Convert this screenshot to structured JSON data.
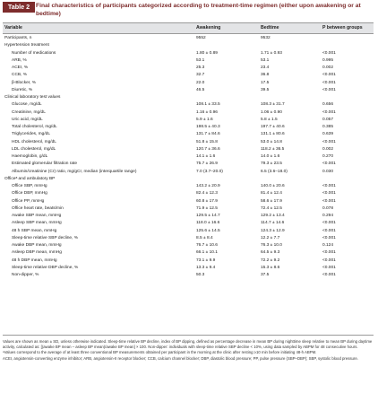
{
  "title": {
    "tag": "Table 2",
    "text": "Final characteristics of participants categorized according to treatment-time regimen (either upon awakening or at bedtime)"
  },
  "header": {
    "variable": "Variable",
    "awakening": "Awakening",
    "bedtime": "Bedtime",
    "p": "P between groups"
  },
  "rows": [
    {
      "label": "Participants, n",
      "a": "9552",
      "b": "9532",
      "p": "",
      "type": "top"
    },
    {
      "label": "Hypertension treatment",
      "a": "",
      "b": "",
      "p": "",
      "type": "section"
    },
    {
      "label": "Number of medications",
      "a": "1.80 ± 0.89",
      "b": "1.71 ± 0.93",
      "p": "<0.001",
      "type": "indent"
    },
    {
      "label": "ARB, %",
      "a": "53.1",
      "b": "53.1",
      "p": "0.995",
      "type": "indent"
    },
    {
      "label": "ACEI, %",
      "a": "25.3",
      "b": "23.4",
      "p": "0.002",
      "type": "indent"
    },
    {
      "label": "CCB, %",
      "a": "32.7",
      "b": "36.8",
      "p": "<0.001",
      "type": "indent"
    },
    {
      "label": "β-Blocker, %",
      "a": "22.0",
      "b": "17.5",
      "p": "<0.001",
      "type": "indent"
    },
    {
      "label": "Diuretic, %",
      "a": "46.5",
      "b": "39.5",
      "p": "<0.001",
      "type": "indent"
    },
    {
      "label": "Clinical laboratory test values",
      "a": "",
      "b": "",
      "p": "",
      "type": "section"
    },
    {
      "label": "Glucose, mg/dL",
      "a": "108.1 ± 33.5",
      "b": "108.3 ± 31.7",
      "p": "0.656",
      "type": "indent"
    },
    {
      "label": "Creatinine, mg/dL",
      "a": "1.16 ± 0.96",
      "b": "1.06 ± 0.90",
      "p": "<0.001",
      "type": "indent"
    },
    {
      "label": "Uric acid, mg/dL",
      "a": "5.9 ± 1.6",
      "b": "5.8 ± 1.5",
      "p": "0.057",
      "type": "indent"
    },
    {
      "label": "Total cholesterol, mg/dL",
      "a": "198.5 ± 40.3",
      "b": "197.7 ± 40.6",
      "p": "0.385",
      "type": "indent"
    },
    {
      "label": "Triglycerides, mg/dL",
      "a": "131.7 ± 84.6",
      "b": "131.1 ± 80.6",
      "p": "0.639",
      "type": "indent"
    },
    {
      "label": "HDL cholesterol, mg/dL",
      "a": "51.8 ± 15.8",
      "b": "53.0 ± 14.8",
      "p": "<0.001",
      "type": "indent"
    },
    {
      "label": "LDL cholesterol, mg/dL",
      "a": "120.7 ± 36.6",
      "b": "118.2 ± 36.5",
      "p": "0.002",
      "type": "indent"
    },
    {
      "label": "Haemoglobin, g/dL",
      "a": "14.1 ± 1.6",
      "b": "14.0 ± 1.6",
      "p": "0.270",
      "type": "indent"
    },
    {
      "label": "Estimated glomerular filtration rate",
      "a": "75.7 ± 26.9",
      "b": "79.3 ± 23.5",
      "p": "<0.001",
      "type": "indent"
    },
    {
      "label": "Albumin/creatinine (Cr) ratio, mg/gCr, median (interquartile range)",
      "a": "7.0 (3.7–20.0)",
      "b": "6.5 (3.6–18.0)",
      "p": "0.030",
      "type": "indent"
    },
    {
      "label": "Officeᵃ and ambulatory BP",
      "a": "",
      "b": "",
      "p": "",
      "type": "section"
    },
    {
      "label": "Office SBP, mmHg",
      "a": "143.2 ± 20.9",
      "b": "140.0 ± 20.6",
      "p": "<0.001",
      "type": "indent"
    },
    {
      "label": "Office DBP, mmHg",
      "a": "82.4 ± 12.3",
      "b": "81.4 ± 12.4",
      "p": "<0.001",
      "type": "indent"
    },
    {
      "label": "Office PP, mmHg",
      "a": "60.8 ± 17.9",
      "b": "58.6 ± 17.9",
      "p": "<0.001",
      "type": "indent"
    },
    {
      "label": "Office heart rate, beats/min",
      "a": "71.9 ± 12.5",
      "b": "72.4 ± 12.5",
      "p": "0.078",
      "type": "indent"
    },
    {
      "label": "Awake SBP mean, mmHg",
      "a": "129.5 ± 14.7",
      "b": "129.2 ± 13.4",
      "p": "0.294",
      "type": "indent"
    },
    {
      "label": "Asleep SBP mean, mmHg",
      "a": "118.0 ± 16.6",
      "b": "114.7 ± 14.6",
      "p": "<0.001",
      "type": "indent"
    },
    {
      "label": "48 h SBP mean, mmHg",
      "a": "125.6 ± 14.5",
      "b": "124.3 ± 12.9",
      "p": "<0.001",
      "type": "indent"
    },
    {
      "label": "Sleep-time relative SBP decline, %",
      "a": "8.5 ± 8.4",
      "b": "12.2 ± 7.7",
      "p": "<0.001",
      "type": "indent"
    },
    {
      "label": "Awake DBP mean, mmHg",
      "a": "76.7 ± 10.6",
      "b": "76.3 ± 10.0",
      "p": "0.124",
      "type": "indent"
    },
    {
      "label": "Asleep DBP mean, mmHg",
      "a": "66.1 ± 10.1",
      "b": "64.5 ± 9.3",
      "p": "<0.001",
      "type": "indent"
    },
    {
      "label": "48 h DBP mean, mmHg",
      "a": "73.1 ± 9.9",
      "b": "72.2 ± 9.2",
      "p": "<0.001",
      "type": "indent"
    },
    {
      "label": "Sleep-time relative DBP decline, %",
      "a": "13.3 ± 9.4",
      "b": "15.3 ± 8.6",
      "p": "<0.001",
      "type": "indent"
    },
    {
      "label": "Non-dipper, %",
      "a": "50.3",
      "b": "37.5",
      "p": "<0.001",
      "type": "indent"
    }
  ],
  "notes": [
    "Values are shown as mean ± SD, unless otherwise indicated. Sleep-time relative BP decline, index of BP dipping, defined as percentage decrease in mean BP during nighttime sleep relative to mean BP during daytime activity, calculated as: [(awake BP mean – asleep BP mean)/awake BP mean] × 100. Non-dipper: individuals with sleep-time relative SBP decline < 10%, using data sampled by ABPM for 48 consecutive hours.",
    "ᵃValues correspond to the average of at least three conventional BP measurements obtained per participant in the morning at the clinic after resting ≥10 min before initiating 48-h ABPM.",
    "ACEI, angiotensin-converting enzyme inhibitor; ARB, angiotensin-II receptor blocker; CCB, calcium channel blocker; DBP, diastolic blood pressure; PP, pulse pressure (SBP–DBP); SBP, systolic blood pressure."
  ]
}
